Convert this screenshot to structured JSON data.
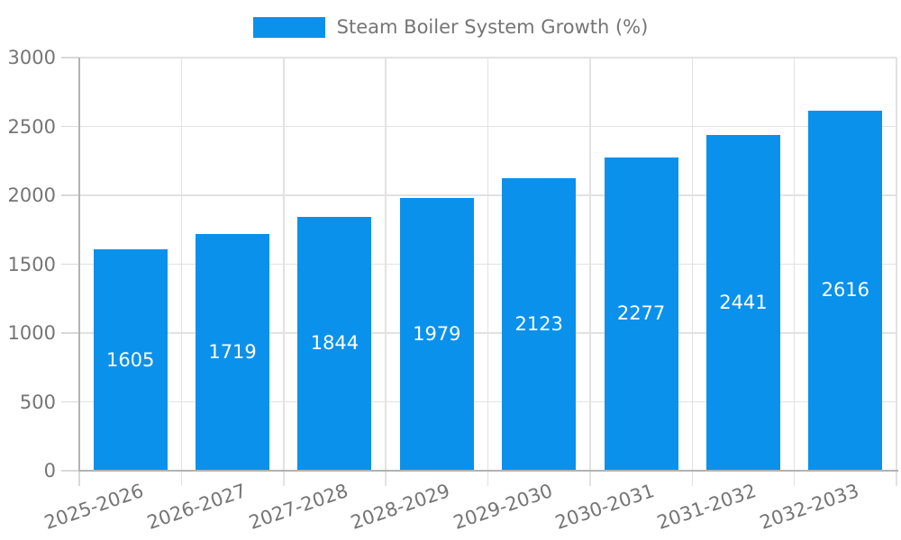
{
  "legend": {
    "label": "Steam Boiler System Growth (%)"
  },
  "chart_data": {
    "type": "bar",
    "series_name": "Steam Boiler System Growth (%)",
    "categories": [
      "2025-2026",
      "2026-2027",
      "2027-2028",
      "2028-2029",
      "2029-2030",
      "2030-2031",
      "2031-2032",
      "2032-2033"
    ],
    "values": [
      1605,
      1719,
      1844,
      1979,
      2123,
      2277,
      2441,
      2616
    ],
    "value_labels_visible": true,
    "xlabel": "",
    "ylabel": "",
    "ylim": [
      0,
      3000
    ],
    "yticks": [
      0,
      500,
      1000,
      1500,
      2000,
      2500,
      3000
    ],
    "grid": true,
    "legend_position": "top",
    "x_label_rotation_deg": -19,
    "colors": {
      "bar": "#0a91ec",
      "grid": "#e2e2e2",
      "axis": "#b3b3b3",
      "tick": "#d9d9d9",
      "axis_label": "#757575",
      "value_label": "#ffffff",
      "background": "#ffffff"
    }
  }
}
